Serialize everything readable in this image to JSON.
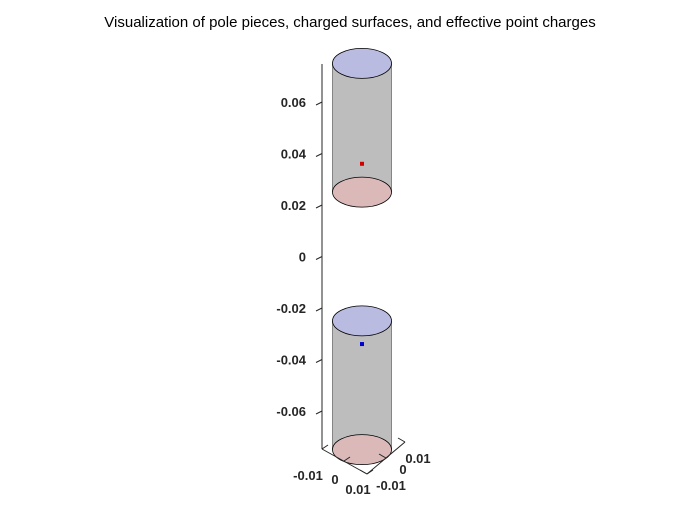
{
  "chart_data": {
    "type": "3d-surface",
    "title": "Visualization of pole pieces, charged surfaces, and effective point charges",
    "xlabel": "",
    "ylabel": "",
    "zlabel": "",
    "zlim": [
      -0.075,
      0.075
    ],
    "ztick_values": [
      -0.06,
      -0.04,
      -0.02,
      0,
      0.02,
      0.04,
      0.06
    ],
    "ztick_labels": [
      "-0.06",
      "-0.04",
      "-0.02",
      "0",
      "0.02",
      "0.04",
      "0.06"
    ],
    "xtick_labels": [
      "-0.01",
      "0",
      "0.01"
    ],
    "ytick_labels": [
      "0.01",
      "0",
      "-0.01"
    ],
    "grid": false,
    "colors": {
      "pole_body": "#bdbdbd",
      "top_surface": "#b9bbe0",
      "bottom_surface": "#dbb9b9",
      "point_charge_upper": "#d00000",
      "point_charge_lower": "#0000d0"
    },
    "pole_pieces": [
      {
        "name": "upper",
        "z_bottom": 0.025,
        "z_top": 0.075,
        "radius": 0.01
      },
      {
        "name": "lower",
        "z_bottom": -0.075,
        "z_top": -0.025,
        "radius": 0.01
      }
    ],
    "point_charges": [
      {
        "x": 0,
        "y": 0,
        "z": 0.036,
        "color": "#d00000"
      },
      {
        "x": 0,
        "y": 0,
        "z": -0.034,
        "color": "#0000d0"
      }
    ]
  }
}
